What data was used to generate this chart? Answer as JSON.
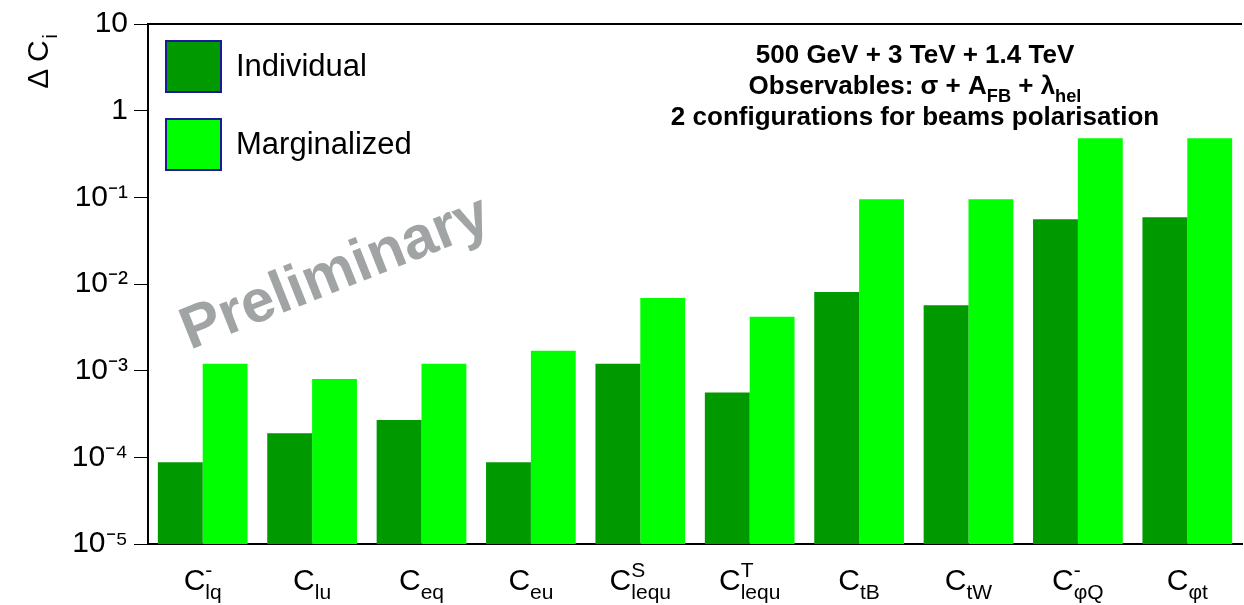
{
  "chart_data": {
    "type": "bar",
    "title": "500 GeV + 3 TeV + 1.4 TeV",
    "subtitle": "Observables: σ + A$_{FB}$ + λ$_{hel}$",
    "annotations": [
      "2 configurations for beams polarisation",
      "Preliminary"
    ],
    "ylabel": "Δ C$_{i}$",
    "categories": [
      "C$^{-}$$_{lq}$",
      "C$_{lu}$",
      "C$_{eq}$",
      "C$_{eu}$",
      "C$^{S}$$_{lequ}$",
      "C$^{T}$$_{lequ}$",
      "C$_{tB}$",
      "C$_{tW}$",
      "C$^{-}$$_{φQ}$",
      "C$_{φt}$"
    ],
    "series": [
      {
        "name": "Individual",
        "color": "#009900",
        "values": [
          8.8e-05,
          0.00019,
          0.00027,
          8.8e-05,
          0.0012,
          0.00056,
          0.0081,
          0.0057,
          0.056,
          0.059
        ]
      },
      {
        "name": "Marginalized",
        "color": "#00ff00",
        "values": [
          0.0012,
          0.0008,
          0.0012,
          0.0017,
          0.0069,
          0.0042,
          0.095,
          0.095,
          0.48,
          0.48
        ]
      }
    ],
    "log": "y",
    "ylim": [
      1e-05,
      10
    ],
    "yticks": [
      {
        "value": 1e-05,
        "label": "10⁻⁵"
      },
      {
        "value": 0.0001,
        "label": "10⁻⁴"
      },
      {
        "value": 0.001,
        "label": "10⁻³"
      },
      {
        "value": 0.01,
        "label": "10⁻²"
      },
      {
        "value": 0.1,
        "label": "10⁻¹"
      },
      1,
      10
    ],
    "grid": false,
    "legend": "top left"
  }
}
